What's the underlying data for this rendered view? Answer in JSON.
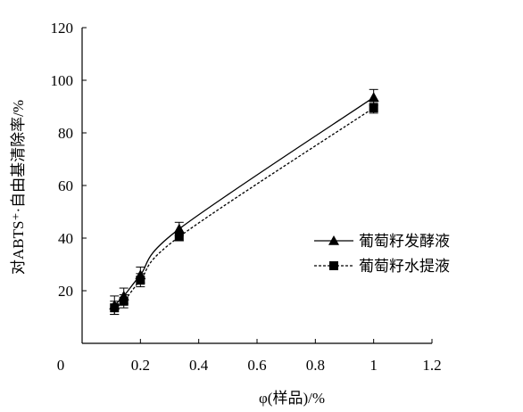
{
  "chart_data": {
    "type": "line",
    "title": "",
    "xlabel": "φ(样品)/%",
    "ylabel": "对ABTS⁺·自由基清除率/%",
    "xlim": [
      0,
      1.2
    ],
    "ylim": [
      0,
      120
    ],
    "x_ticks": [
      "0",
      "0.2",
      "0.4",
      "0.6",
      "0.8",
      "1",
      "1.2"
    ],
    "y_ticks": [
      "20",
      "40",
      "60",
      "80",
      "100",
      "120"
    ],
    "grid": false,
    "legend_position": "right",
    "series": [
      {
        "name": "葡萄籽发酵液",
        "marker": "triangle",
        "line_style": "solid",
        "color": "#000000",
        "x": [
          0.111,
          0.143,
          0.2,
          0.333,
          1.0
        ],
        "y": [
          14.5,
          18.0,
          26.0,
          43.5,
          93.5
        ],
        "error": [
          3.5,
          3.0,
          3.0,
          2.5,
          3.0
        ]
      },
      {
        "name": "葡萄籽水提液",
        "marker": "square",
        "line_style": "dashed",
        "color": "#000000",
        "x": [
          0.111,
          0.143,
          0.2,
          0.333,
          1.0
        ],
        "y": [
          13.5,
          16.0,
          24.0,
          40.5,
          89.5
        ],
        "error": [
          2.5,
          2.5,
          2.5,
          1.5,
          2.0
        ]
      }
    ]
  }
}
